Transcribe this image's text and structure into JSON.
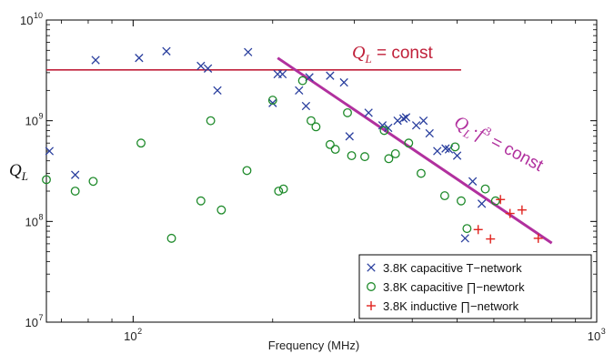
{
  "chart_data": {
    "type": "scatter",
    "xscale": "log",
    "yscale": "log",
    "xlim": [
      65,
      1000
    ],
    "ylim": [
      10000000,
      10000000000
    ],
    "xlabel": "Frequency (MHz)",
    "ylabel": "Q_L",
    "x_ticks": [
      {
        "value": 100,
        "base": "10",
        "exp": "2"
      },
      {
        "value": 1000,
        "base": "10",
        "exp": "3"
      }
    ],
    "y_ticks": [
      {
        "value": 10000000,
        "base": "10",
        "exp": "7"
      },
      {
        "value": 100000000,
        "base": "10",
        "exp": "8"
      },
      {
        "value": 1000000000,
        "base": "10",
        "exp": "9"
      },
      {
        "value": 10000000000,
        "base": "10",
        "exp": "10"
      }
    ],
    "grid": false,
    "legend_position": "lower-right",
    "series": [
      {
        "name": "3.8K capacitive T−network",
        "marker": "x",
        "color": "#2a3f9e",
        "points": [
          [
            66,
            500000000
          ],
          [
            75,
            290000000
          ],
          [
            83,
            4000000000
          ],
          [
            103,
            4200000000
          ],
          [
            118,
            4900000000
          ],
          [
            140,
            3500000000
          ],
          [
            145,
            3300000000
          ],
          [
            152,
            2000000000
          ],
          [
            177,
            4800000000
          ],
          [
            200,
            1500000000
          ],
          [
            205,
            2900000000
          ],
          [
            210,
            2900000000
          ],
          [
            228,
            2000000000
          ],
          [
            236,
            1400000000
          ],
          [
            240,
            2700000000
          ],
          [
            266,
            2800000000
          ],
          [
            285,
            2400000000
          ],
          [
            293,
            700000000
          ],
          [
            322,
            1200000000
          ],
          [
            345,
            900000000
          ],
          [
            355,
            850000000
          ],
          [
            372,
            1000000000
          ],
          [
            383,
            1050000000
          ],
          [
            388,
            1080000000
          ],
          [
            408,
            900000000
          ],
          [
            423,
            1000000000
          ],
          [
            436,
            750000000
          ],
          [
            453,
            500000000
          ],
          [
            472,
            530000000
          ],
          [
            480,
            520000000
          ],
          [
            500,
            450000000
          ],
          [
            540,
            250000000
          ],
          [
            565,
            150000000
          ],
          [
            520,
            68000000
          ]
        ]
      },
      {
        "name": "3.8K capacitive ∏−newtork",
        "marker": "o",
        "color": "#1e8a2a",
        "points": [
          [
            65,
            260000000
          ],
          [
            75,
            200000000
          ],
          [
            82,
            250000000
          ],
          [
            104,
            600000000
          ],
          [
            121,
            68000000
          ],
          [
            140,
            160000000
          ],
          [
            147,
            1000000000
          ],
          [
            155,
            130000000
          ],
          [
            176,
            320000000
          ],
          [
            200,
            1600000000
          ],
          [
            206,
            200000000
          ],
          [
            211,
            210000000
          ],
          [
            232,
            2500000000
          ],
          [
            242,
            1000000000
          ],
          [
            248,
            870000000
          ],
          [
            266,
            580000000
          ],
          [
            273,
            520000000
          ],
          [
            290,
            1200000000
          ],
          [
            296,
            450000000
          ],
          [
            316,
            440000000
          ],
          [
            348,
            800000000
          ],
          [
            356,
            420000000
          ],
          [
            368,
            470000000
          ],
          [
            393,
            600000000
          ],
          [
            418,
            300000000
          ],
          [
            470,
            180000000
          ],
          [
            495,
            550000000
          ],
          [
            510,
            160000000
          ],
          [
            525,
            85000000
          ],
          [
            575,
            210000000
          ],
          [
            605,
            160000000
          ]
        ]
      },
      {
        "name": "3.8K inductive ∏−network",
        "marker": "+",
        "color": "#e0231e",
        "points": [
          [
            555,
            83000000
          ],
          [
            590,
            67000000
          ],
          [
            620,
            165000000
          ],
          [
            650,
            120000000
          ],
          [
            690,
            130000000
          ],
          [
            748,
            68000000
          ]
        ]
      }
    ],
    "reference_lines": [
      {
        "label": "Q_L = const",
        "color": "#c0203a",
        "x": [
          65,
          510
        ],
        "y": [
          3200000000,
          3200000000
        ]
      },
      {
        "label": "Q_L·f^3 = const",
        "color": "#b1309e",
        "x": [
          205,
          800
        ],
        "y": [
          4200000000,
          61000000
        ]
      }
    ],
    "annotations": [
      {
        "id": "ql-const",
        "symbol": "Q",
        "subscript": "L",
        "text": " = const"
      },
      {
        "id": "qlf3-const",
        "symbol": "Q",
        "subscript": "L",
        "dot": "·",
        "f": "f",
        "sup": "3",
        "text": " = const"
      }
    ]
  }
}
